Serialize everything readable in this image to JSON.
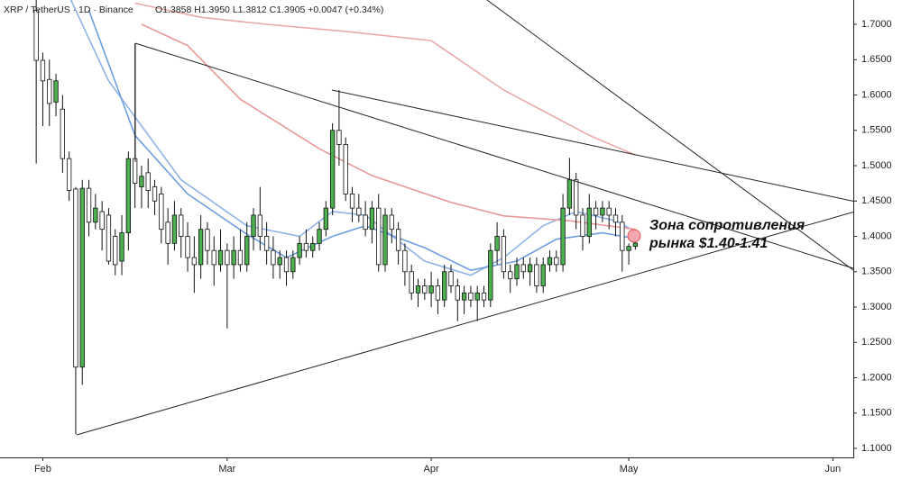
{
  "chart_data": {
    "type": "candlestick",
    "title": "XRP / TetherUS · 1D · Binance",
    "legend_text": "O1.3858 H1.3950 L1.3812 C1.3905 +0.0047 (+0.34%)",
    "annotation": [
      "Зона сопротивления",
      "рынка $1.40-1.41"
    ],
    "up_color": "#4caf50",
    "down_color": "#ffffff",
    "xlim": [
      -5.5,
      124.1
    ],
    "xticks": [
      {
        "value": 1,
        "label": "Feb"
      },
      {
        "value": 29,
        "label": "Mar"
      },
      {
        "value": 60,
        "label": "Apr"
      },
      {
        "value": 90,
        "label": "May"
      },
      {
        "value": 121,
        "label": "Jun"
      }
    ],
    "ylim": [
      1.0873,
      1.7344
    ],
    "yticks": [
      {
        "value": 1.1,
        "label": "1.1000"
      },
      {
        "value": 1.15,
        "label": "1.1500"
      },
      {
        "value": 1.2,
        "label": "1.2000"
      },
      {
        "value": 1.25,
        "label": "1.2500"
      },
      {
        "value": 1.3,
        "label": "1.3000"
      },
      {
        "value": 1.35,
        "label": "1.3500"
      },
      {
        "value": 1.4,
        "label": "1.4000"
      },
      {
        "value": 1.45,
        "label": "1.4500"
      },
      {
        "value": 1.5,
        "label": "1.5000"
      },
      {
        "value": 1.55,
        "label": "1.5500"
      },
      {
        "value": 1.6,
        "label": "1.6000"
      },
      {
        "value": 1.65,
        "label": "1.6500"
      },
      {
        "value": 1.7,
        "label": "1.7000"
      }
    ],
    "open": [
      1.72,
      1.649,
      1.622,
      1.59,
      1.58,
      1.51,
      1.467,
      1.215,
      1.468,
      1.42,
      1.435,
      1.43,
      1.4,
      1.365,
      1.405,
      1.51,
      1.47,
      1.49,
      1.47,
      1.46,
      1.42,
      1.39,
      1.43,
      1.4,
      1.37,
      1.36,
      1.41,
      1.38,
      1.36,
      1.38,
      1.36,
      1.38,
      1.36,
      1.4,
      1.43,
      1.4,
      1.38,
      1.36,
      1.37,
      1.35,
      1.37,
      1.39,
      1.38,
      1.39,
      1.41,
      1.44,
      1.55,
      1.53,
      1.46,
      1.44,
      1.43,
      1.41,
      1.44,
      1.36,
      1.43,
      1.41,
      1.38,
      1.35,
      1.32,
      1.33,
      1.32,
      1.33,
      1.31,
      1.35,
      1.33,
      1.31,
      1.32,
      1.31,
      1.32,
      1.31,
      1.38,
      1.4,
      1.35,
      1.34,
      1.36,
      1.35,
      1.36,
      1.33,
      1.36,
      1.37,
      1.36,
      1.44,
      1.48,
      1.43,
      1.4,
      1.44,
      1.43,
      1.44,
      1.43,
      1.42,
      1.38,
      1.3858
    ],
    "close": [
      1.649,
      1.62,
      1.588,
      1.62,
      1.51,
      1.465,
      1.215,
      1.468,
      1.42,
      1.44,
      1.41,
      1.365,
      1.36,
      1.405,
      1.51,
      1.475,
      1.485,
      1.465,
      1.45,
      1.41,
      1.39,
      1.43,
      1.4,
      1.37,
      1.36,
      1.41,
      1.38,
      1.36,
      1.38,
      1.36,
      1.38,
      1.36,
      1.4,
      1.43,
      1.4,
      1.38,
      1.36,
      1.37,
      1.35,
      1.37,
      1.39,
      1.38,
      1.39,
      1.41,
      1.44,
      1.55,
      1.53,
      1.46,
      1.44,
      1.43,
      1.41,
      1.44,
      1.36,
      1.43,
      1.41,
      1.38,
      1.35,
      1.32,
      1.33,
      1.32,
      1.33,
      1.31,
      1.35,
      1.33,
      1.31,
      1.32,
      1.31,
      1.32,
      1.31,
      1.38,
      1.4,
      1.35,
      1.34,
      1.36,
      1.35,
      1.36,
      1.33,
      1.36,
      1.37,
      1.36,
      1.44,
      1.48,
      1.43,
      1.4,
      1.44,
      1.43,
      1.44,
      1.43,
      1.42,
      1.38,
      1.3858,
      1.3905
    ],
    "high": [
      1.74,
      1.66,
      1.65,
      1.63,
      1.6,
      1.52,
      1.47,
      1.48,
      1.48,
      1.46,
      1.45,
      1.44,
      1.41,
      1.43,
      1.52,
      1.673,
      1.5,
      1.51,
      1.48,
      1.47,
      1.44,
      1.45,
      1.44,
      1.42,
      1.4,
      1.43,
      1.42,
      1.4,
      1.41,
      1.39,
      1.4,
      1.41,
      1.42,
      1.44,
      1.47,
      1.42,
      1.4,
      1.38,
      1.38,
      1.38,
      1.4,
      1.41,
      1.4,
      1.42,
      1.45,
      1.56,
      1.607,
      1.54,
      1.47,
      1.46,
      1.45,
      1.45,
      1.46,
      1.44,
      1.44,
      1.42,
      1.39,
      1.36,
      1.34,
      1.34,
      1.35,
      1.34,
      1.36,
      1.36,
      1.34,
      1.33,
      1.33,
      1.33,
      1.33,
      1.39,
      1.42,
      1.41,
      1.36,
      1.37,
      1.37,
      1.37,
      1.37,
      1.37,
      1.38,
      1.38,
      1.46,
      1.511,
      1.49,
      1.44,
      1.46,
      1.45,
      1.45,
      1.45,
      1.44,
      1.43,
      1.39,
      1.395
    ],
    "low": [
      1.503,
      1.556,
      1.556,
      1.57,
      1.49,
      1.45,
      1.12,
      1.19,
      1.4,
      1.41,
      1.38,
      1.36,
      1.345,
      1.345,
      1.38,
      1.44,
      1.44,
      1.44,
      1.43,
      1.39,
      1.36,
      1.38,
      1.37,
      1.35,
      1.32,
      1.34,
      1.36,
      1.33,
      1.35,
      1.27,
      1.34,
      1.35,
      1.35,
      1.38,
      1.38,
      1.36,
      1.34,
      1.34,
      1.33,
      1.34,
      1.36,
      1.37,
      1.37,
      1.38,
      1.4,
      1.43,
      1.5,
      1.45,
      1.42,
      1.42,
      1.4,
      1.39,
      1.35,
      1.35,
      1.39,
      1.36,
      1.33,
      1.31,
      1.3,
      1.31,
      1.3,
      1.29,
      1.3,
      1.32,
      1.28,
      1.29,
      1.3,
      1.28,
      1.3,
      1.3,
      1.36,
      1.34,
      1.32,
      1.33,
      1.34,
      1.33,
      1.32,
      1.32,
      1.35,
      1.35,
      1.35,
      1.43,
      1.41,
      1.38,
      1.39,
      1.41,
      1.42,
      1.41,
      1.4,
      1.35,
      1.36,
      1.3812
    ],
    "lines": [
      {
        "color": "#8fb3e8",
        "x": [
          5,
          11,
          22,
          32,
          40,
          45,
          50,
          59,
          66,
          71,
          77,
          82,
          88,
          91
        ],
        "values": [
          1.74,
          1.62,
          1.48,
          1.415,
          1.4,
          1.435,
          1.43,
          1.365,
          1.345,
          1.37,
          1.415,
          1.435,
          1.422,
          1.407
        ]
      },
      {
        "color": "#6f9ee0",
        "x": [
          8,
          15,
          23,
          32,
          38,
          45,
          50,
          59,
          66,
          73,
          79,
          86,
          91
        ],
        "values": [
          1.72,
          1.543,
          1.46,
          1.403,
          1.37,
          1.4,
          1.415,
          1.384,
          1.352,
          1.365,
          1.396,
          1.405,
          1.397
        ]
      },
      {
        "color": "#e89a9a",
        "x": [
          16,
          23,
          31,
          43,
          51,
          63,
          71,
          81,
          91
        ],
        "values": [
          1.7,
          1.67,
          1.594,
          1.524,
          1.486,
          1.448,
          1.429,
          1.422,
          1.41
        ]
      },
      {
        "color": "#e9a8a8",
        "x": [
          15,
          25,
          35,
          47,
          60,
          71,
          84,
          91
        ],
        "values": [
          1.73,
          1.71,
          1.7,
          1.69,
          1.677,
          1.607,
          1.543,
          1.515
        ]
      }
    ]
  }
}
